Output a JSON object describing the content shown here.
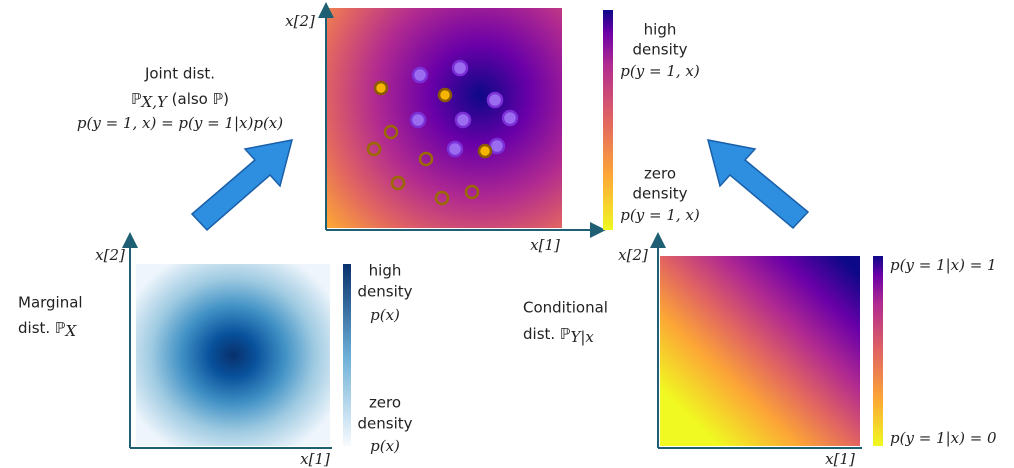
{
  "joint": {
    "caption": {
      "line1": "Joint dist.",
      "symbol": "ℙ",
      "subscript": "X,Y",
      "suffix": " (also ℙ)",
      "formula": "p(y = 1, x) = p(y = 1|x)p(x)"
    },
    "x_label": "x[1]",
    "y_label": "x[2]",
    "colorbar": {
      "top": [
        "high",
        "density",
        "p(y = 1, x)"
      ],
      "bottom": [
        "zero",
        "density",
        "p(y = 1, x)"
      ]
    }
  },
  "marginal": {
    "caption": {
      "line1": "Marginal",
      "line2": "dist. ",
      "symbol": "ℙ",
      "subscript": "X"
    },
    "x_label": "x[1]",
    "y_label": "x[2]",
    "colorbar": {
      "top": [
        "high",
        "density",
        "p(x)"
      ],
      "bottom": [
        "zero",
        "density",
        "p(x)"
      ]
    }
  },
  "conditional": {
    "caption": {
      "line1": "Conditional",
      "line2": "dist. ",
      "symbol": "ℙ",
      "subscript": "Y|x"
    },
    "x_label": "x[1]",
    "y_label": "x[2]",
    "colorbar": {
      "top": "p(y = 1|x) = 1",
      "bottom": "p(y = 1|x) = 0"
    }
  }
}
